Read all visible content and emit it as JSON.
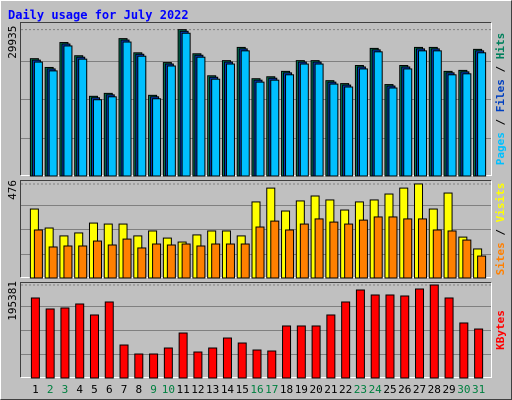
{
  "chart_data": [
    {
      "type": "bar",
      "title": "Daily usage for July 2022",
      "categories": [
        "1",
        "2",
        "3",
        "4",
        "5",
        "6",
        "7",
        "8",
        "9",
        "10",
        "11",
        "12",
        "13",
        "14",
        "15",
        "16",
        "17",
        "18",
        "19",
        "20",
        "21",
        "22",
        "23",
        "24",
        "25",
        "26",
        "27",
        "28",
        "29",
        "30",
        "31"
      ],
      "category_colors": [
        "#000000",
        "#008040",
        "#008040",
        "#000000",
        "#000000",
        "#000000",
        "#000000",
        "#000000",
        "#008040",
        "#008040",
        "#000000",
        "#000000",
        "#000000",
        "#000000",
        "#000000",
        "#008040",
        "#008040",
        "#000000",
        "#000000",
        "#000000",
        "#000000",
        "#000000",
        "#008040",
        "#008040",
        "#000000",
        "#000000",
        "#000000",
        "#000000",
        "#000000",
        "#008040",
        "#008040"
      ],
      "legend_separator": " / ",
      "series": [
        {
          "name": "Hits",
          "color": "#00805c",
          "values": [
            24000,
            22200,
            27300,
            24600,
            16300,
            16900,
            28100,
            25200,
            16500,
            23200,
            29935,
            25000,
            20500,
            23600,
            26300,
            19900,
            20300,
            21400,
            23600,
            23600,
            19500,
            18900,
            22600,
            26100,
            18700,
            22600,
            26300,
            26300,
            21400,
            21600,
            25900
          ]
        },
        {
          "name": "Files",
          "color": "#0040c0",
          "values": [
            23700,
            21900,
            27000,
            24300,
            16000,
            16600,
            27800,
            24900,
            16200,
            22900,
            29600,
            24700,
            20200,
            23300,
            26000,
            19600,
            20000,
            21100,
            23300,
            23300,
            19200,
            18600,
            22300,
            25800,
            18400,
            22300,
            26000,
            26000,
            21100,
            21300,
            25600
          ]
        },
        {
          "name": "Pages",
          "color": "#00c0ff",
          "values": [
            23300,
            21500,
            26600,
            23900,
            15600,
            16200,
            27400,
            24500,
            15800,
            22500,
            29200,
            24300,
            19800,
            22900,
            25600,
            19200,
            19600,
            20700,
            22900,
            22900,
            18800,
            18200,
            21900,
            25400,
            18000,
            21900,
            25600,
            25600,
            20700,
            20900,
            25200
          ]
        }
      ],
      "ylim": [
        0,
        31500
      ],
      "yticks": [
        29935
      ]
    },
    {
      "type": "bar",
      "legend_separator": " / ",
      "series": [
        {
          "name": "Visits",
          "color": "#ffff00",
          "values": [
            349,
            253,
            213,
            228,
            278,
            273,
            273,
            213,
            238,
            202,
            182,
            218,
            238,
            238,
            213,
            385,
            455,
            339,
            390,
            415,
            395,
            344,
            385,
            395,
            425,
            455,
            476,
            349,
            430,
            207,
            147
          ]
        },
        {
          "name": "Sites",
          "color": "#ff8000",
          "values": [
            243,
            157,
            162,
            162,
            187,
            167,
            197,
            152,
            172,
            167,
            172,
            162,
            172,
            172,
            172,
            258,
            288,
            243,
            273,
            299,
            283,
            273,
            293,
            309,
            309,
            299,
            299,
            243,
            238,
            192,
            111
          ]
        }
      ],
      "ylim": [
        0,
        496
      ],
      "yticks": [
        476
      ]
    },
    {
      "type": "bar",
      "series": [
        {
          "name": "KBytes",
          "color": "#ff0000",
          "values": [
            168100,
            145000,
            147100,
            155500,
            132400,
            159700,
            69300,
            50400,
            50400,
            63000,
            94500,
            54600,
            63000,
            84000,
            73500,
            58800,
            56700,
            109300,
            109300,
            109300,
            132400,
            159700,
            184900,
            174400,
            174400,
            172300,
            187000,
            195381,
            168100,
            115600,
            102900
          ]
        }
      ],
      "ylim": [
        0,
        201700
      ],
      "yticks": [
        195381
      ]
    }
  ]
}
